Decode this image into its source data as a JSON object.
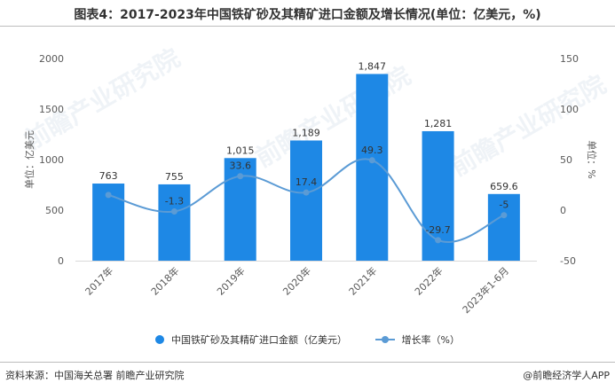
{
  "colors": {
    "bar": "#1e88e5",
    "line": "#5b9bd5",
    "axis_text": "#595959",
    "label_text": "#333333",
    "watermark": "#d0dde8"
  },
  "footer": {
    "source": "资料来源：中国海关总署 前瞻产业研究院",
    "brand": "@前瞻经济学人APP"
  },
  "chart_data": {
    "type": "bar",
    "title": "图表4：2017-2023年中国铁矿砂及其精矿进口金额及增长情况(单位：亿美元，%)",
    "categories": [
      "2017年",
      "2018年",
      "2019年",
      "2020年",
      "2021年",
      "2022年",
      "2023年1-6月"
    ],
    "series": [
      {
        "name": "中国铁矿砂及其精矿进口金额（亿美元）",
        "type": "bar",
        "axis": "left",
        "values": [
          763,
          755,
          1015,
          1189,
          1847,
          1281,
          659.6
        ],
        "labels": [
          "763",
          "755",
          "1,015",
          "1,189",
          "1,847",
          "1,281",
          "659.6"
        ]
      },
      {
        "name": "增长率（%）",
        "type": "line",
        "axis": "right",
        "values": [
          15,
          -1.3,
          33.6,
          17.4,
          49.3,
          -29.7,
          -5
        ],
        "labels": [
          "",
          "-1.3",
          "33.6",
          "17.4",
          "49.3",
          "-29.7",
          "-5"
        ]
      }
    ],
    "ylabel_left": "单位：亿美元",
    "ylabel_right": "单位：%",
    "ylim_left": [
      0,
      2000
    ],
    "yticks_left": [
      "0",
      "500",
      "1000",
      "1500",
      "2000"
    ],
    "ylim_right": [
      -50,
      150
    ],
    "yticks_right": [
      "-50",
      "0",
      "50",
      "100",
      "150"
    ],
    "legend_position": "bottom",
    "watermark": "前瞻产业研究院"
  }
}
